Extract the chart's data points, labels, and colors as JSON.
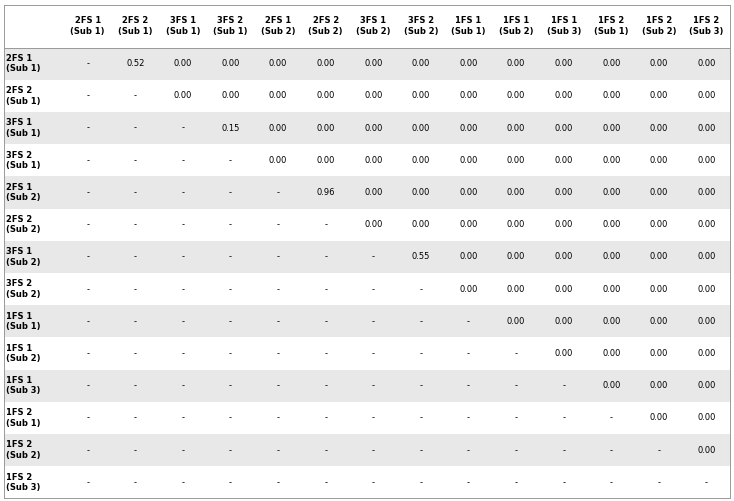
{
  "col_headers": [
    "2FS 1\n(Sub 1)",
    "2FS 2\n(Sub 1)",
    "3FS 1\n(Sub 1)",
    "3FS 2\n(Sub 1)",
    "2FS 1\n(Sub 2)",
    "2FS 2\n(Sub 2)",
    "3FS 1\n(Sub 2)",
    "3FS 2\n(Sub 2)",
    "1FS 1\n(Sub 1)",
    "1FS 1\n(Sub 2)",
    "1FS 1\n(Sub 3)",
    "1FS 2\n(Sub 1)",
    "1FS 2\n(Sub 2)",
    "1FS 2\n(Sub 3)"
  ],
  "row_headers": [
    "2FS 1\n(Sub 1)",
    "2FS 2\n(Sub 1)",
    "3FS 1\n(Sub 1)",
    "3FS 2\n(Sub 1)",
    "2FS 1\n(Sub 2)",
    "2FS 2\n(Sub 2)",
    "3FS 1\n(Sub 2)",
    "3FS 2\n(Sub 2)",
    "1FS 1\n(Sub 1)",
    "1FS 1\n(Sub 2)",
    "1FS 1\n(Sub 3)",
    "1FS 2\n(Sub 1)",
    "1FS 2\n(Sub 2)",
    "1FS 2\n(Sub 3)"
  ],
  "cell_data": [
    [
      "-",
      "0.52",
      "0.00",
      "0.00",
      "0.00",
      "0.00",
      "0.00",
      "0.00",
      "0.00",
      "0.00",
      "0.00",
      "0.00",
      "0.00",
      "0.00"
    ],
    [
      "-",
      "-",
      "0.00",
      "0.00",
      "0.00",
      "0.00",
      "0.00",
      "0.00",
      "0.00",
      "0.00",
      "0.00",
      "0.00",
      "0.00",
      "0.00"
    ],
    [
      "-",
      "-",
      "-",
      "0.15",
      "0.00",
      "0.00",
      "0.00",
      "0.00",
      "0.00",
      "0.00",
      "0.00",
      "0.00",
      "0.00",
      "0.00"
    ],
    [
      "-",
      "-",
      "-",
      "-",
      "0.00",
      "0.00",
      "0.00",
      "0.00",
      "0.00",
      "0.00",
      "0.00",
      "0.00",
      "0.00",
      "0.00"
    ],
    [
      "-",
      "-",
      "-",
      "-",
      "-",
      "0.96",
      "0.00",
      "0.00",
      "0.00",
      "0.00",
      "0.00",
      "0.00",
      "0.00",
      "0.00"
    ],
    [
      "-",
      "-",
      "-",
      "-",
      "-",
      "-",
      "0.00",
      "0.00",
      "0.00",
      "0.00",
      "0.00",
      "0.00",
      "0.00",
      "0.00"
    ],
    [
      "-",
      "-",
      "-",
      "-",
      "-",
      "-",
      "-",
      "0.55",
      "0.00",
      "0.00",
      "0.00",
      "0.00",
      "0.00",
      "0.00"
    ],
    [
      "-",
      "-",
      "-",
      "-",
      "-",
      "-",
      "-",
      "-",
      "0.00",
      "0.00",
      "0.00",
      "0.00",
      "0.00",
      "0.00"
    ],
    [
      "-",
      "-",
      "-",
      "-",
      "-",
      "-",
      "-",
      "-",
      "-",
      "0.00",
      "0.00",
      "0.00",
      "0.00",
      "0.00"
    ],
    [
      "-",
      "-",
      "-",
      "-",
      "-",
      "-",
      "-",
      "-",
      "-",
      "-",
      "0.00",
      "0.00",
      "0.00",
      "0.00"
    ],
    [
      "-",
      "-",
      "-",
      "-",
      "-",
      "-",
      "-",
      "-",
      "-",
      "-",
      "-",
      "0.00",
      "0.00",
      "0.00"
    ],
    [
      "-",
      "-",
      "-",
      "-",
      "-",
      "-",
      "-",
      "-",
      "-",
      "-",
      "-",
      "-",
      "0.00",
      "0.00"
    ],
    [
      "-",
      "-",
      "-",
      "-",
      "-",
      "-",
      "-",
      "-",
      "-",
      "-",
      "-",
      "-",
      "-",
      "0.00"
    ],
    [
      "-",
      "-",
      "-",
      "-",
      "-",
      "-",
      "-",
      "-",
      "-",
      "-",
      "-",
      "-",
      "-",
      "-"
    ]
  ],
  "row_bg_colors": [
    "#e8e8e8",
    "#ffffff",
    "#e8e8e8",
    "#ffffff",
    "#e8e8e8",
    "#ffffff",
    "#e8e8e8",
    "#ffffff",
    "#e8e8e8",
    "#ffffff",
    "#e8e8e8",
    "#ffffff",
    "#e8e8e8",
    "#ffffff"
  ],
  "header_bg": "#ffffff",
  "font_size": 6.0,
  "header_font_size": 6.0,
  "border_color": "#888888",
  "text_color": "#000000"
}
